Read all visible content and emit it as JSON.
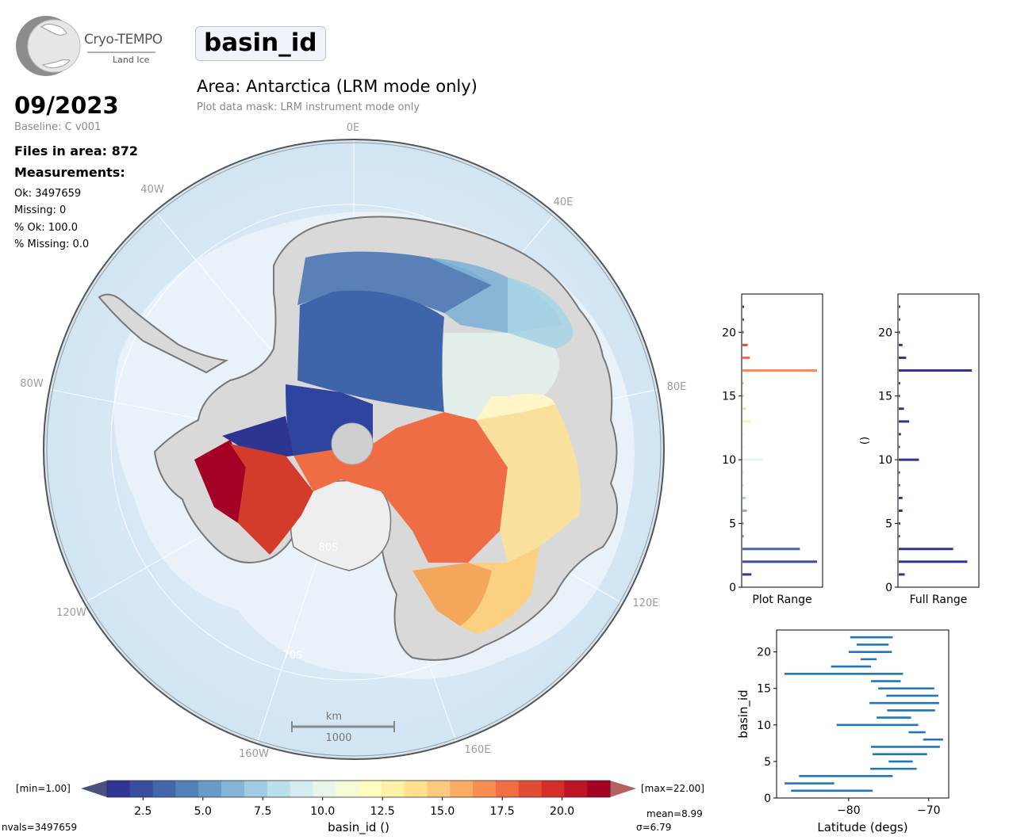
{
  "logo": {
    "name": "Cryo-TEMPO",
    "subtitle": "Land Ice"
  },
  "parameter": "basin_id",
  "area_title": "Area: Antarctica (LRM mode only)",
  "mask_text": "Plot data mask: LRM instrument mode only",
  "date": "09/2023",
  "baseline": "Baseline: C v001",
  "files": "Files in area: 872",
  "measurements_heading": "Measurements:",
  "stats": [
    "Ok: 3497659",
    "Missing: 0",
    "% Ok: 100.0",
    "% Missing: 0.0"
  ],
  "map": {
    "lon_labels": [
      "0E",
      "40E",
      "80E",
      "120E",
      "160E",
      "160W",
      "120W",
      "80W",
      "40W"
    ],
    "lat_labels": [
      "80S",
      "70S"
    ],
    "scale_unit": "km",
    "scale_value": "1000"
  },
  "colorbar": {
    "min_label": "[min=1.00]",
    "max_label": "[max=22.00]",
    "ticks": [
      "2.5",
      "5.0",
      "7.5",
      "10.0",
      "12.5",
      "15.0",
      "17.5",
      "20.0"
    ],
    "label": "basin_id ()",
    "nvals": "nvals=3497659",
    "mean": "mean=8.99",
    "sigma": "σ=6.79",
    "colors": [
      "#313695",
      "#3a4d9e",
      "#4467ac",
      "#5581b9",
      "#6a9bc6",
      "#85b4d5",
      "#a1cbe2",
      "#bbdfeb",
      "#d4ebf1",
      "#e9f5eb",
      "#f5fbd7",
      "#fffebe",
      "#fff1a6",
      "#fee090",
      "#fdc980",
      "#fcac63",
      "#f88e52",
      "#f26d43",
      "#e34c32",
      "#d32e27",
      "#bb1526",
      "#a50026"
    ]
  },
  "chart_data": [
    {
      "type": "bar",
      "orientation": "horizontal",
      "title": "Plot Range",
      "ylim": [
        0,
        23
      ],
      "yticks": [
        "0",
        "5",
        "10",
        "15",
        "20"
      ],
      "categories": [
        1,
        2,
        3,
        4,
        5,
        6,
        7,
        8,
        9,
        10,
        11,
        12,
        13,
        14,
        15,
        16,
        17,
        18,
        19,
        20,
        21,
        22
      ],
      "values": [
        0.12,
        1.0,
        0.77,
        0.01,
        0.01,
        0.06,
        0.04,
        0.01,
        0.01,
        0.28,
        0.01,
        0.01,
        0.11,
        0.05,
        0.01,
        0.01,
        1.0,
        0.1,
        0.07,
        0.01,
        0.02,
        0.02
      ]
    },
    {
      "type": "bar",
      "orientation": "horizontal",
      "title": "Full Range",
      "ylabel": "()",
      "ylim": [
        0,
        23
      ],
      "yticks": [
        "0",
        "5",
        "10",
        "15",
        "20"
      ],
      "categories": [
        1,
        2,
        3,
        4,
        5,
        6,
        7,
        8,
        9,
        10,
        11,
        12,
        13,
        14,
        15,
        16,
        17,
        18,
        19,
        20,
        21,
        22
      ],
      "values": [
        0.08,
        0.92,
        0.73,
        0.01,
        0.02,
        0.05,
        0.05,
        0.01,
        0.01,
        0.27,
        0.01,
        0.03,
        0.14,
        0.07,
        0.01,
        0.02,
        0.98,
        0.1,
        0.05,
        0.01,
        0.02,
        0.02
      ]
    },
    {
      "type": "range",
      "xlabel": "Latitude (degs)",
      "ylabel": "basin_id",
      "xlim": [
        -89,
        -67.5
      ],
      "ylim": [
        0,
        23
      ],
      "xticks": [
        -80,
        -70
      ],
      "xtick_labels": [
        "−80",
        "−70"
      ],
      "yticks": [
        "0",
        "5",
        "10",
        "15",
        "20"
      ],
      "series_color": "#1f77b4",
      "ranges": [
        {
          "id": 1,
          "from": -87.2,
          "to": -77.0
        },
        {
          "id": 2,
          "from": -88.0,
          "to": -81.8
        },
        {
          "id": 3,
          "from": -86.2,
          "to": -74.5
        },
        {
          "id": 4,
          "from": -77.3,
          "to": -71.5
        },
        {
          "id": 5,
          "from": -75.0,
          "to": -72.0
        },
        {
          "id": 6,
          "from": -77.0,
          "to": -70.2
        },
        {
          "id": 7,
          "from": -77.2,
          "to": -68.6
        },
        {
          "id": 8,
          "from": -70.7,
          "to": -68.2
        },
        {
          "id": 9,
          "from": -72.5,
          "to": -70.4
        },
        {
          "id": 10,
          "from": -81.5,
          "to": -71.3
        },
        {
          "id": 11,
          "from": -76.5,
          "to": -72.2
        },
        {
          "id": 12,
          "from": -75.2,
          "to": -69.2
        },
        {
          "id": 13,
          "from": -77.4,
          "to": -68.7
        },
        {
          "id": 14,
          "from": -75.3,
          "to": -68.8
        },
        {
          "id": 15,
          "from": -76.3,
          "to": -69.3
        },
        {
          "id": 16,
          "from": -77.2,
          "to": -73.5
        },
        {
          "id": 17,
          "from": -88.0,
          "to": -73.2
        },
        {
          "id": 18,
          "from": -82.2,
          "to": -77.2
        },
        {
          "id": 19,
          "from": -78.5,
          "to": -76.5
        },
        {
          "id": 20,
          "from": -80.0,
          "to": -74.6
        },
        {
          "id": 21,
          "from": -79.0,
          "to": -75.0
        },
        {
          "id": 22,
          "from": -79.8,
          "to": -74.5
        }
      ]
    }
  ]
}
